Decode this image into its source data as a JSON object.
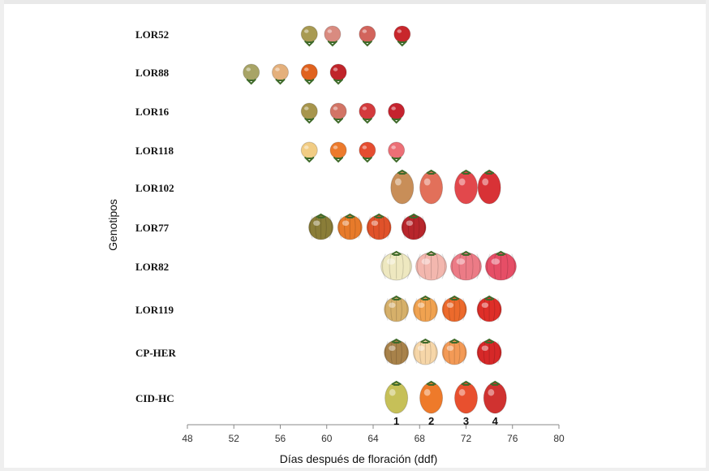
{
  "chart_data": {
    "type": "scatter",
    "xlabel": "Días después de floración (ddf)",
    "ylabel": "Genotipos",
    "xlim": [
      48,
      80
    ],
    "x_ticks": [
      "48",
      "52",
      "56",
      "60",
      "64",
      "68",
      "72",
      "76",
      "80"
    ],
    "stage_labels": [
      "1",
      "2",
      "3",
      "4"
    ],
    "grid": false,
    "series": [
      {
        "name": "LOR52",
        "shape": "small-round",
        "x": [
          58.5,
          60.5,
          63.5,
          66.5
        ],
        "colors": [
          "#a89a52",
          "#d98b80",
          "#d2645c",
          "#c8262c"
        ]
      },
      {
        "name": "LOR88",
        "shape": "small-round",
        "x": [
          53.5,
          56.0,
          58.5,
          61.0
        ],
        "colors": [
          "#a8a466",
          "#e4b07c",
          "#e0621e",
          "#c0242a"
        ]
      },
      {
        "name": "LOR16",
        "shape": "small-round",
        "x": [
          58.5,
          61.0,
          63.5,
          66.0
        ],
        "colors": [
          "#a7954c",
          "#d27465",
          "#d33a3c",
          "#c5232e"
        ]
      },
      {
        "name": "LOR118",
        "shape": "small-round",
        "x": [
          58.5,
          61.0,
          63.5,
          66.0
        ],
        "colors": [
          "#f1cc84",
          "#ec7a2c",
          "#e54d30",
          "#ec6f76"
        ]
      },
      {
        "name": "LOR102",
        "shape": "elongated",
        "x": [
          66.5,
          69.0,
          72.0,
          74.0
        ],
        "colors": [
          "#c88e58",
          "#e2705a",
          "#e2484c",
          "#d83236"
        ]
      },
      {
        "name": "LOR77",
        "shape": "ribbed",
        "x": [
          59.5,
          62.0,
          64.5,
          67.5
        ],
        "colors": [
          "#8a7d38",
          "#e77a2a",
          "#e0522a",
          "#b8262c"
        ]
      },
      {
        "name": "LOR82",
        "shape": "large-flat",
        "x": [
          66.0,
          69.0,
          72.0,
          75.0
        ],
        "colors": [
          "#eee8c0",
          "#f3b7ae",
          "#ec7b86",
          "#e64e66"
        ]
      },
      {
        "name": "LOR119",
        "shape": "ribbed",
        "x": [
          66.0,
          68.5,
          71.0,
          74.0
        ],
        "colors": [
          "#d6b06a",
          "#f0a250",
          "#ec6a2c",
          "#de2e28"
        ]
      },
      {
        "name": "CP-HER",
        "shape": "ribbed",
        "x": [
          66.0,
          68.5,
          71.0,
          74.0
        ],
        "colors": [
          "#a8824a",
          "#f6d6a8",
          "#f39a56",
          "#d62828"
        ]
      },
      {
        "name": "CID-HC",
        "shape": "oval",
        "x": [
          66.0,
          69.0,
          72.0,
          74.5
        ],
        "colors": [
          "#c6c058",
          "#ee7a2a",
          "#e8502e",
          "#d03230"
        ]
      }
    ]
  }
}
